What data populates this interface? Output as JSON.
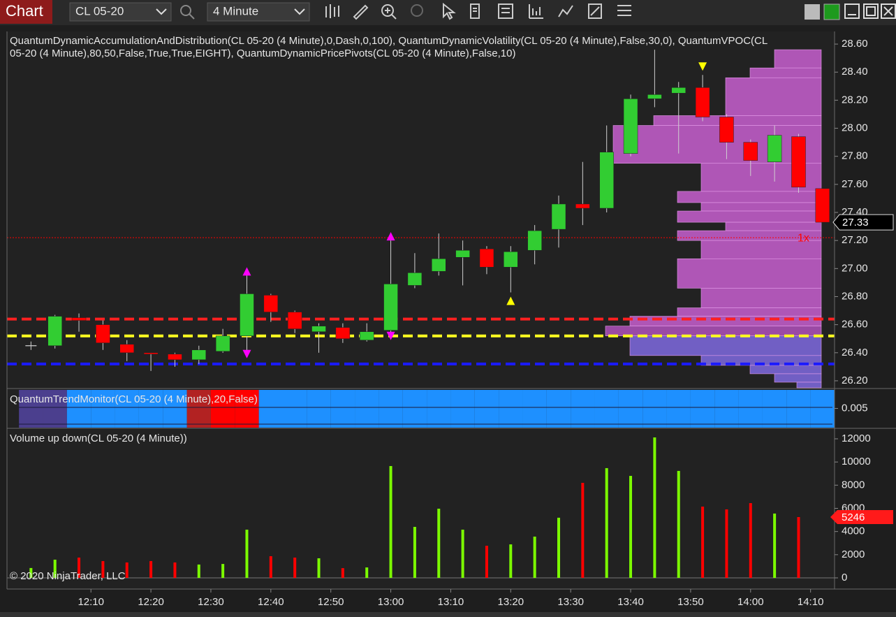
{
  "toolbar": {
    "tab": "Chart",
    "instrument": "CL 05-20",
    "interval": "4 Minute"
  },
  "copyright": "© 2020 NinjaTrader, LLC",
  "chart_data": [
    {
      "type": "candlestick",
      "title_lines": [
        "QuantumDynamicAccumulationAndDistribution(CL 05-20 (4 Minute),0,Dash,0,100), QuantumDynamicVolatility(CL 05-20 (4 Minute),False,30,0), QuantumVPOC(CL",
        "05-20 (4 Minute),80,50,False,True,True,EIGHT), QuantumDynamicPricePivots(CL 05-20 (4 Minute),False,10)"
      ],
      "x": [
        "12:00",
        "12:04",
        "12:08",
        "12:12",
        "12:16",
        "12:20",
        "12:24",
        "12:28",
        "12:32",
        "12:36",
        "12:40",
        "12:44",
        "12:48",
        "12:52",
        "12:56",
        "13:00",
        "13:04",
        "13:08",
        "13:12",
        "13:16",
        "13:20",
        "13:24",
        "13:28",
        "13:32",
        "13:36",
        "13:40",
        "13:44",
        "13:48",
        "13:52",
        "13:56",
        "14:00",
        "14:04",
        "14:08",
        "14:12"
      ],
      "open": [
        26.45,
        26.45,
        26.65,
        26.6,
        26.46,
        26.4,
        26.39,
        26.35,
        26.41,
        26.52,
        26.81,
        26.69,
        26.55,
        26.58,
        26.49,
        26.56,
        26.88,
        26.98,
        27.08,
        27.14,
        27.01,
        27.13,
        27.28,
        27.46,
        27.43,
        27.82,
        28.21,
        28.25,
        28.29,
        28.08,
        27.9,
        27.76,
        27.94,
        27.57
      ],
      "high": [
        26.48,
        26.67,
        26.68,
        26.63,
        26.49,
        26.4,
        26.4,
        26.45,
        26.57,
        26.95,
        26.82,
        26.7,
        26.61,
        26.61,
        26.61,
        27.2,
        27.11,
        27.25,
        27.2,
        27.16,
        27.16,
        27.31,
        27.52,
        27.76,
        28.02,
        28.24,
        28.56,
        28.33,
        28.38,
        28.1,
        27.92,
        28.02,
        27.96,
        27.57
      ],
      "low": [
        26.42,
        26.43,
        26.55,
        26.42,
        26.34,
        26.27,
        26.3,
        26.32,
        26.4,
        26.38,
        26.62,
        26.54,
        26.4,
        26.47,
        26.48,
        26.51,
        26.86,
        26.95,
        26.88,
        26.96,
        26.83,
        27.03,
        27.15,
        27.31,
        27.4,
        27.8,
        28.15,
        27.82,
        28.05,
        27.78,
        27.66,
        27.62,
        27.54,
        27.33
      ],
      "close": [
        26.45,
        26.66,
        26.63,
        26.47,
        26.4,
        26.39,
        26.35,
        26.42,
        26.52,
        26.82,
        26.69,
        26.57,
        26.59,
        26.5,
        26.55,
        26.89,
        26.97,
        27.07,
        27.13,
        27.01,
        27.12,
        27.27,
        27.46,
        27.43,
        27.83,
        28.21,
        28.24,
        28.29,
        28.08,
        27.9,
        27.77,
        27.95,
        27.58,
        27.33
      ],
      "up_color": "#32cd32",
      "down_color": "#ff0000",
      "xlim": [
        "11:56",
        "14:14"
      ],
      "xticks": [
        "12:10",
        "12:20",
        "12:30",
        "12:40",
        "12:50",
        "13:00",
        "13:10",
        "13:20",
        "13:30",
        "13:40",
        "13:50",
        "14:00",
        "14:10"
      ],
      "ylim": [
        26.15,
        28.69
      ],
      "yticks": [
        {
          "value": 26.2,
          "label": "26.20"
        },
        {
          "value": 26.4,
          "label": "26.40"
        },
        {
          "value": 26.6,
          "label": "26.60"
        },
        {
          "value": 26.8,
          "label": "26.80"
        },
        {
          "value": 27.0,
          "label": "27.00"
        },
        {
          "value": 27.2,
          "label": "27.20"
        },
        {
          "value": 27.4,
          "label": "27.40"
        },
        {
          "value": 27.6,
          "label": "27.60"
        },
        {
          "value": 27.8,
          "label": "27.80"
        },
        {
          "value": 28.0,
          "label": "28.00"
        },
        {
          "value": 28.2,
          "label": "28.20"
        },
        {
          "value": 28.4,
          "label": "28.40"
        },
        {
          "value": 28.6,
          "label": "28.60"
        }
      ],
      "levels": [
        {
          "value": 26.64,
          "color": "#ff2020",
          "style": "dash"
        },
        {
          "value": 26.52,
          "color": "#ffff20",
          "style": "dash"
        },
        {
          "value": 26.32,
          "color": "#1a1aff",
          "style": "dash"
        },
        {
          "value": 27.22,
          "color": "#ff0000",
          "style": "dotted",
          "label": "1x"
        }
      ],
      "markers": [
        {
          "x": "12:36",
          "value": 26.98,
          "shape": "up",
          "color": "#ff00ff"
        },
        {
          "x": "12:36",
          "value": 26.39,
          "shape": "down",
          "color": "#ff00ff"
        },
        {
          "x": "13:00",
          "value": 27.23,
          "shape": "up",
          "color": "#ff00ff"
        },
        {
          "x": "13:00",
          "value": 26.52,
          "shape": "down",
          "color": "#ff00ff"
        },
        {
          "x": "13:20",
          "value": 26.77,
          "shape": "up",
          "color": "#ffff00"
        },
        {
          "x": "13:52",
          "value": 28.44,
          "shape": "down",
          "color": "#ffff00"
        }
      ],
      "profile": {
        "bins": [
          28.56,
          28.43,
          28.36,
          28.09,
          28.02,
          27.75,
          27.55,
          27.47,
          27.41,
          27.33,
          27.27,
          27.2,
          27.07,
          26.86,
          26.72,
          26.66,
          26.59,
          26.52,
          26.38,
          26.31,
          26.25,
          26.19,
          26.15
        ],
        "values": [
          67,
          102,
          137,
          240,
          298,
          172,
          206,
          172,
          206,
          137,
          206,
          172,
          206,
          172,
          206,
          274,
          309,
          274,
          172,
          102,
          67,
          35
        ],
        "colors": [
          "#bf5cc6",
          "#bf5cc6",
          "#bf5cc6",
          "#bf5cc6",
          "#bf5cc6",
          "#bf5cc6",
          "#bf5cc6",
          "#bf5cc6",
          "#bf5cc6",
          "#bf5cc6",
          "#bf5cc6",
          "#bf5cc6",
          "#bf5cc6",
          "#bf5cc6",
          "#bf5cc6",
          "#bf5cc6",
          "#a84fb4",
          "#7a66d6",
          "#7a66d6",
          "#7a66d6",
          "#7a66d6",
          "#7a66d6"
        ]
      }
    },
    {
      "type": "trend-band",
      "title": "QuantumTrendMonitor(CL 05-20 (4 Minute),20,False)",
      "colors": [
        "#4b3f8e",
        "#4b3f8e",
        "#1e90ff",
        "#1e90ff",
        "#1e90ff",
        "#1e90ff",
        "#1e90ff",
        "#b22222",
        "#ff0000",
        "#ff0000",
        "#1e90ff",
        "#1e90ff",
        "#1e90ff",
        "#1e90ff",
        "#1e90ff",
        "#1e90ff",
        "#1e90ff",
        "#1e90ff",
        "#1e90ff",
        "#1e90ff",
        "#1e90ff",
        "#1e90ff",
        "#1e90ff",
        "#1e90ff",
        "#1e90ff",
        "#1e90ff",
        "#1e90ff",
        "#1e90ff",
        "#1e90ff",
        "#1e90ff",
        "#1e90ff",
        "#1e90ff",
        "#1e90ff",
        "#1e90ff"
      ],
      "ylim": [
        0,
        0.01
      ],
      "yticks": [
        0.005
      ]
    },
    {
      "type": "bar",
      "title": "Volume up down(CL 05-20 (4 Minute))",
      "values": [
        850,
        1570,
        1750,
        1450,
        1330,
        1450,
        1330,
        1150,
        1200,
        4160,
        1870,
        1750,
        1690,
        840,
        900,
        9650,
        4400,
        5970,
        4160,
        2770,
        2890,
        3560,
        5190,
        8200,
        9470,
        8800,
        12120,
        9230,
        6150,
        5910,
        6450,
        5550,
        5246,
        null
      ],
      "bar_colors": [
        "#7cfc00",
        "#7cfc00",
        "#ff0000",
        "#ff0000",
        "#ff0000",
        "#ff0000",
        "#ff0000",
        "#7cfc00",
        "#7cfc00",
        "#7cfc00",
        "#ff0000",
        "#ff0000",
        "#7cfc00",
        "#ff0000",
        "#7cfc00",
        "#7cfc00",
        "#7cfc00",
        "#7cfc00",
        "#7cfc00",
        "#ff0000",
        "#7cfc00",
        "#7cfc00",
        "#7cfc00",
        "#ff0000",
        "#7cfc00",
        "#7cfc00",
        "#7cfc00",
        "#7cfc00",
        "#ff0000",
        "#ff0000",
        "#ff0000",
        "#7cfc00",
        "#ff0000",
        "#ff0000"
      ],
      "ylim": [
        -965,
        12784
      ],
      "yticks": [
        0,
        2000,
        4000,
        6000,
        8000,
        10000,
        12000
      ]
    }
  ]
}
